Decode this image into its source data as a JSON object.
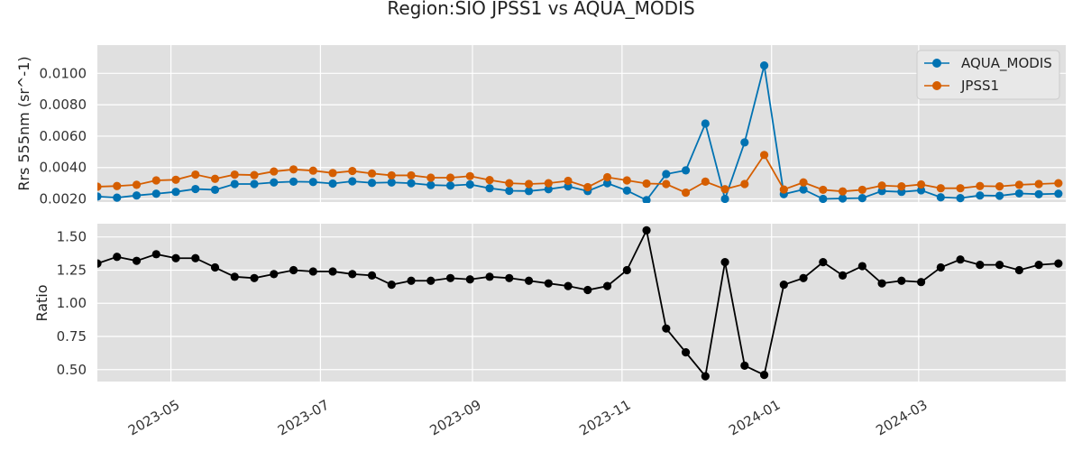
{
  "figure": {
    "title": "Region:SIO JPSS1 vs AQUA_MODIS",
    "xtick_labels": [
      "2023-05",
      "2023-07",
      "2023-09",
      "2023-11",
      "2024-01",
      "2024-03"
    ]
  },
  "colors": {
    "background": "#e0e0e0",
    "grid": "#ffffff",
    "aqua": "#0072b2",
    "jpss1": "#d55e00",
    "ratio": "#000000"
  },
  "chart_data": [
    {
      "type": "line",
      "title": "Region:SIO JPSS1 vs AQUA_MODIS",
      "xlabel": "",
      "ylabel": "Rrs 555nm (sr^-1)",
      "ylim": [
        0.0018,
        0.0118
      ],
      "xlim": [
        "2023-04-01",
        "2024-04-30"
      ],
      "yticks": [
        "0.0020",
        "0.0040",
        "0.0060",
        "0.0080",
        "0.0100"
      ],
      "grid": true,
      "legend": "top-right",
      "x": [
        "2023-04-01",
        "2023-04-09",
        "2023-04-17",
        "2023-04-25",
        "2023-05-03",
        "2023-05-11",
        "2023-05-19",
        "2023-05-27",
        "2023-06-04",
        "2023-06-12",
        "2023-06-20",
        "2023-06-28",
        "2023-07-06",
        "2023-07-14",
        "2023-07-22",
        "2023-07-30",
        "2023-08-07",
        "2023-08-15",
        "2023-08-23",
        "2023-08-31",
        "2023-09-08",
        "2023-09-16",
        "2023-09-24",
        "2023-10-02",
        "2023-10-10",
        "2023-10-18",
        "2023-10-26",
        "2023-11-03",
        "2023-11-11",
        "2023-11-19",
        "2023-11-27",
        "2023-12-05",
        "2023-12-13",
        "2023-12-21",
        "2023-12-29",
        "2024-01-06",
        "2024-01-14",
        "2024-01-22",
        "2024-01-30",
        "2024-02-07",
        "2024-02-15",
        "2024-02-23",
        "2024-03-02",
        "2024-03-10",
        "2024-03-18",
        "2024-03-26",
        "2024-04-03",
        "2024-04-11",
        "2024-04-19",
        "2024-04-27"
      ],
      "series": [
        {
          "name": "AQUA_MODIS",
          "values": [
            0.00215,
            0.00208,
            0.00222,
            0.00233,
            0.00245,
            0.00263,
            0.00258,
            0.00295,
            0.00295,
            0.00305,
            0.0031,
            0.00308,
            0.00298,
            0.00312,
            0.00302,
            0.00305,
            0.003,
            0.00288,
            0.00285,
            0.00292,
            0.00268,
            0.00252,
            0.0025,
            0.00262,
            0.0028,
            0.0025,
            0.003,
            0.00253,
            0.00192,
            0.00358,
            0.00382,
            0.0068,
            0.002,
            0.0056,
            0.0105,
            0.0023,
            0.0026,
            0.002,
            0.00203,
            0.00205,
            0.0025,
            0.00245,
            0.00255,
            0.0021,
            0.00205,
            0.00222,
            0.0022,
            0.00235,
            0.0023,
            0.00233
          ]
        },
        {
          "name": "JPSS1",
          "values": [
            0.00278,
            0.00282,
            0.0029,
            0.00318,
            0.00322,
            0.00355,
            0.00328,
            0.00355,
            0.00352,
            0.00375,
            0.00388,
            0.0038,
            0.00365,
            0.00378,
            0.00362,
            0.0035,
            0.0035,
            0.00335,
            0.00335,
            0.00345,
            0.0032,
            0.003,
            0.00295,
            0.003,
            0.00315,
            0.00275,
            0.00338,
            0.00318,
            0.00298,
            0.00295,
            0.0024,
            0.0031,
            0.00262,
            0.00295,
            0.0048,
            0.0026,
            0.00305,
            0.00258,
            0.00248,
            0.00258,
            0.00285,
            0.0028,
            0.00292,
            0.00268,
            0.00268,
            0.00282,
            0.0028,
            0.0029,
            0.00295,
            0.003
          ]
        }
      ]
    },
    {
      "type": "line",
      "title": "",
      "xlabel": "",
      "ylabel": "Ratio",
      "ylim": [
        0.41,
        1.6
      ],
      "xlim": [
        "2023-04-01",
        "2024-04-30"
      ],
      "yticks": [
        "0.50",
        "0.75",
        "1.00",
        "1.25",
        "1.50"
      ],
      "grid": true,
      "x": [
        "2023-04-01",
        "2023-04-09",
        "2023-04-17",
        "2023-04-25",
        "2023-05-03",
        "2023-05-11",
        "2023-05-19",
        "2023-05-27",
        "2023-06-04",
        "2023-06-12",
        "2023-06-20",
        "2023-06-28",
        "2023-07-06",
        "2023-07-14",
        "2023-07-22",
        "2023-07-30",
        "2023-08-07",
        "2023-08-15",
        "2023-08-23",
        "2023-08-31",
        "2023-09-08",
        "2023-09-16",
        "2023-09-24",
        "2023-10-02",
        "2023-10-10",
        "2023-10-18",
        "2023-10-26",
        "2023-11-03",
        "2023-11-11",
        "2023-11-19",
        "2023-11-27",
        "2023-12-05",
        "2023-12-13",
        "2023-12-21",
        "2023-12-29",
        "2024-01-06",
        "2024-01-14",
        "2024-01-22",
        "2024-01-30",
        "2024-02-07",
        "2024-02-15",
        "2024-02-23",
        "2024-03-02",
        "2024-03-10",
        "2024-03-18",
        "2024-03-26",
        "2024-04-03",
        "2024-04-11",
        "2024-04-19",
        "2024-04-27"
      ],
      "series": [
        {
          "name": "",
          "values": [
            1.3,
            1.35,
            1.32,
            1.37,
            1.34,
            1.34,
            1.27,
            1.2,
            1.19,
            1.22,
            1.25,
            1.24,
            1.24,
            1.22,
            1.21,
            1.14,
            1.17,
            1.17,
            1.19,
            1.18,
            1.2,
            1.19,
            1.17,
            1.15,
            1.13,
            1.1,
            1.13,
            1.25,
            1.55,
            0.81,
            0.63,
            0.45,
            1.31,
            0.53,
            0.46,
            1.14,
            1.19,
            1.31,
            1.21,
            1.28,
            1.15,
            1.17,
            1.16,
            1.27,
            1.33,
            1.29,
            1.29,
            1.25,
            1.29,
            1.3
          ]
        }
      ]
    }
  ]
}
